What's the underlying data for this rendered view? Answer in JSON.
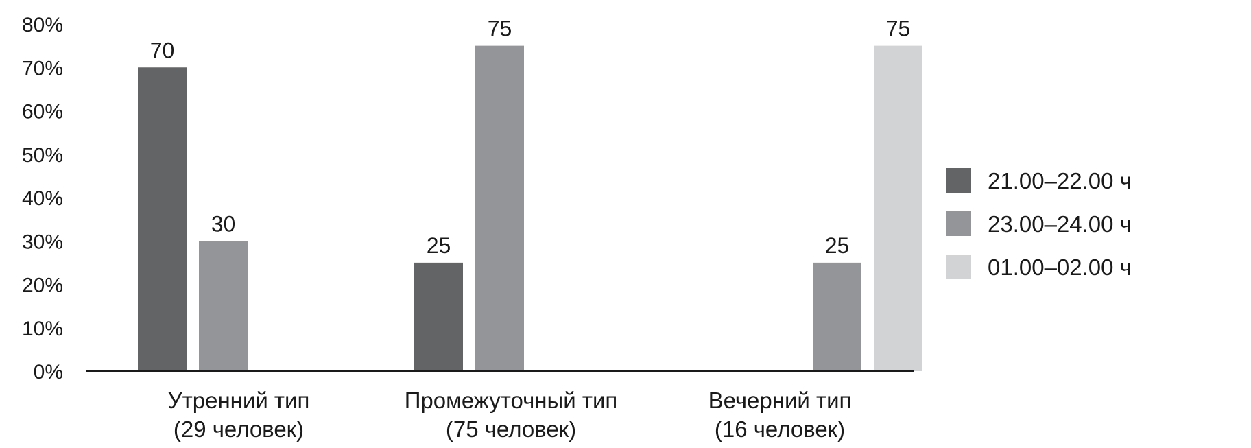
{
  "chart_data": {
    "type": "bar",
    "categories": [
      [
        "Утренний тип",
        "(29 человек)"
      ],
      [
        "Промежуточный тип",
        "(75 человек)"
      ],
      [
        "Вечерний тип",
        "(16 человек)"
      ]
    ],
    "series": [
      {
        "name": "21.00–22.00 ч",
        "color": "#636466",
        "values": [
          70,
          25,
          0
        ]
      },
      {
        "name": "23.00–24.00 ч",
        "color": "#939598",
        "values": [
          30,
          75,
          25
        ]
      },
      {
        "name": "01.00–02.00 ч",
        "color": "#d1d3d4",
        "values": [
          0,
          0,
          75
        ]
      }
    ],
    "bars": [
      {
        "category": 0,
        "series": 0,
        "value": 70,
        "label": "70"
      },
      {
        "category": 0,
        "series": 1,
        "value": 30,
        "label": "30"
      },
      {
        "category": 1,
        "series": 0,
        "value": 25,
        "label": "25"
      },
      {
        "category": 1,
        "series": 1,
        "value": 75,
        "label": "75"
      },
      {
        "category": 2,
        "series": 1,
        "value": 25,
        "label": "25"
      },
      {
        "category": 2,
        "series": 2,
        "value": 75,
        "label": "75"
      }
    ],
    "y_ticks": [
      "0%",
      "10%",
      "20%",
      "30%",
      "40%",
      "50%",
      "60%",
      "70%",
      "80%"
    ],
    "ylim": [
      0,
      80
    ],
    "grid": false,
    "legend_position": "right",
    "title": "",
    "xlabel": "",
    "ylabel": ""
  }
}
